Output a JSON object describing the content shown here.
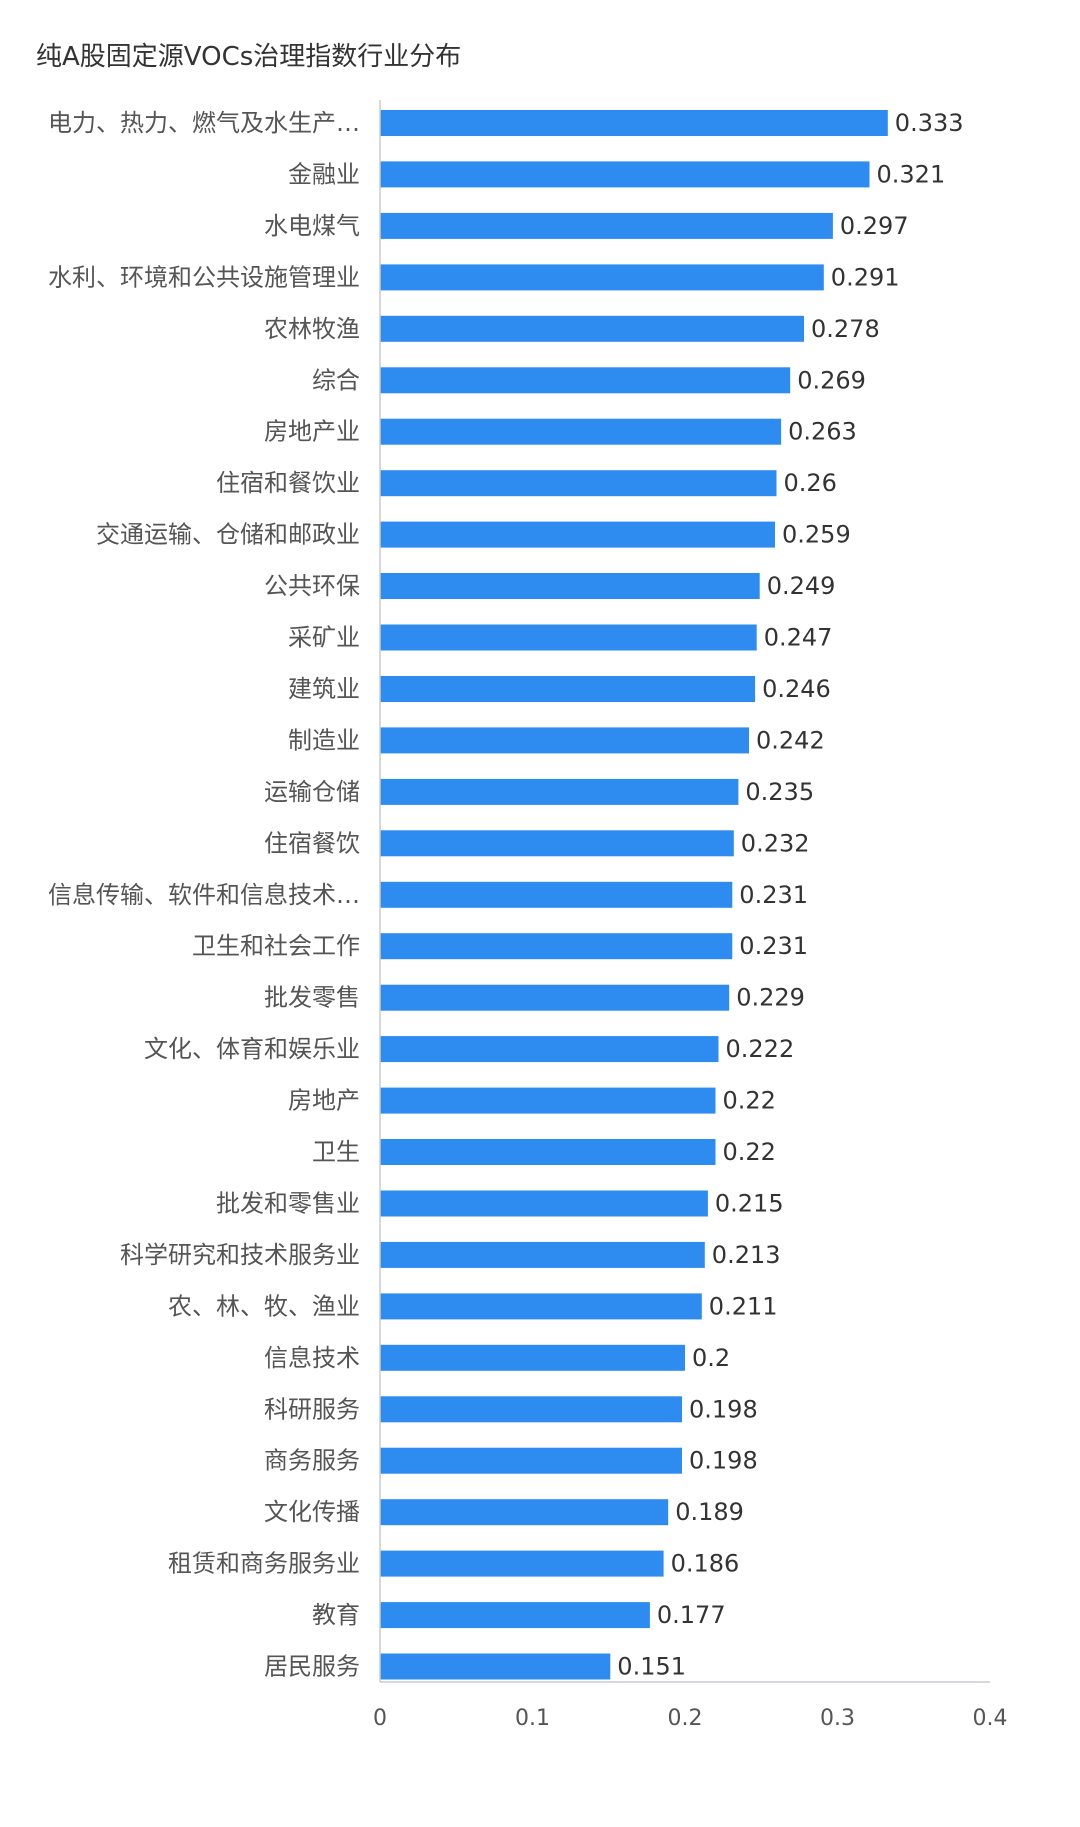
{
  "chart_data": {
    "type": "bar",
    "orientation": "horizontal",
    "title": "纯A股固定源VOCs治理指数行业分布",
    "categories": [
      "电力、热力、燃气及水生产…",
      "金融业",
      "水电煤气",
      "水利、环境和公共设施管理业",
      "农林牧渔",
      "综合",
      "房地产业",
      "住宿和餐饮业",
      "交通运输、仓储和邮政业",
      "公共环保",
      "采矿业",
      "建筑业",
      "制造业",
      "运输仓储",
      "住宿餐饮",
      "信息传输、软件和信息技术…",
      "卫生和社会工作",
      "批发零售",
      "文化、体育和娱乐业",
      "房地产",
      "卫生",
      "批发和零售业",
      "科学研究和技术服务业",
      "农、林、牧、渔业",
      "信息技术",
      "科研服务",
      "商务服务",
      "文化传播",
      "租赁和商务服务业",
      "教育",
      "居民服务"
    ],
    "values": [
      0.333,
      0.321,
      0.297,
      0.291,
      0.278,
      0.269,
      0.263,
      0.26,
      0.259,
      0.249,
      0.247,
      0.246,
      0.242,
      0.235,
      0.232,
      0.231,
      0.231,
      0.229,
      0.222,
      0.22,
      0.22,
      0.215,
      0.213,
      0.211,
      0.2,
      0.198,
      0.198,
      0.189,
      0.186,
      0.177,
      0.151
    ],
    "value_labels": [
      "0.333",
      "0.321",
      "0.297",
      "0.291",
      "0.278",
      "0.269",
      "0.263",
      "0.26",
      "0.259",
      "0.249",
      "0.247",
      "0.246",
      "0.242",
      "0.235",
      "0.232",
      "0.231",
      "0.231",
      "0.229",
      "0.222",
      "0.22",
      "0.22",
      "0.215",
      "0.213",
      "0.211",
      "0.2",
      "0.198",
      "0.198",
      "0.189",
      "0.186",
      "0.177",
      "0.151"
    ],
    "xlim": [
      0,
      0.4
    ],
    "xticks": [
      0,
      0.1,
      0.2,
      0.3,
      0.4
    ],
    "xtick_labels": [
      "0",
      "0.1",
      "0.2",
      "0.3",
      "0.4"
    ],
    "grid": false,
    "bar_color": "#2e8bf0",
    "axis_color": "#c8ccd4"
  }
}
